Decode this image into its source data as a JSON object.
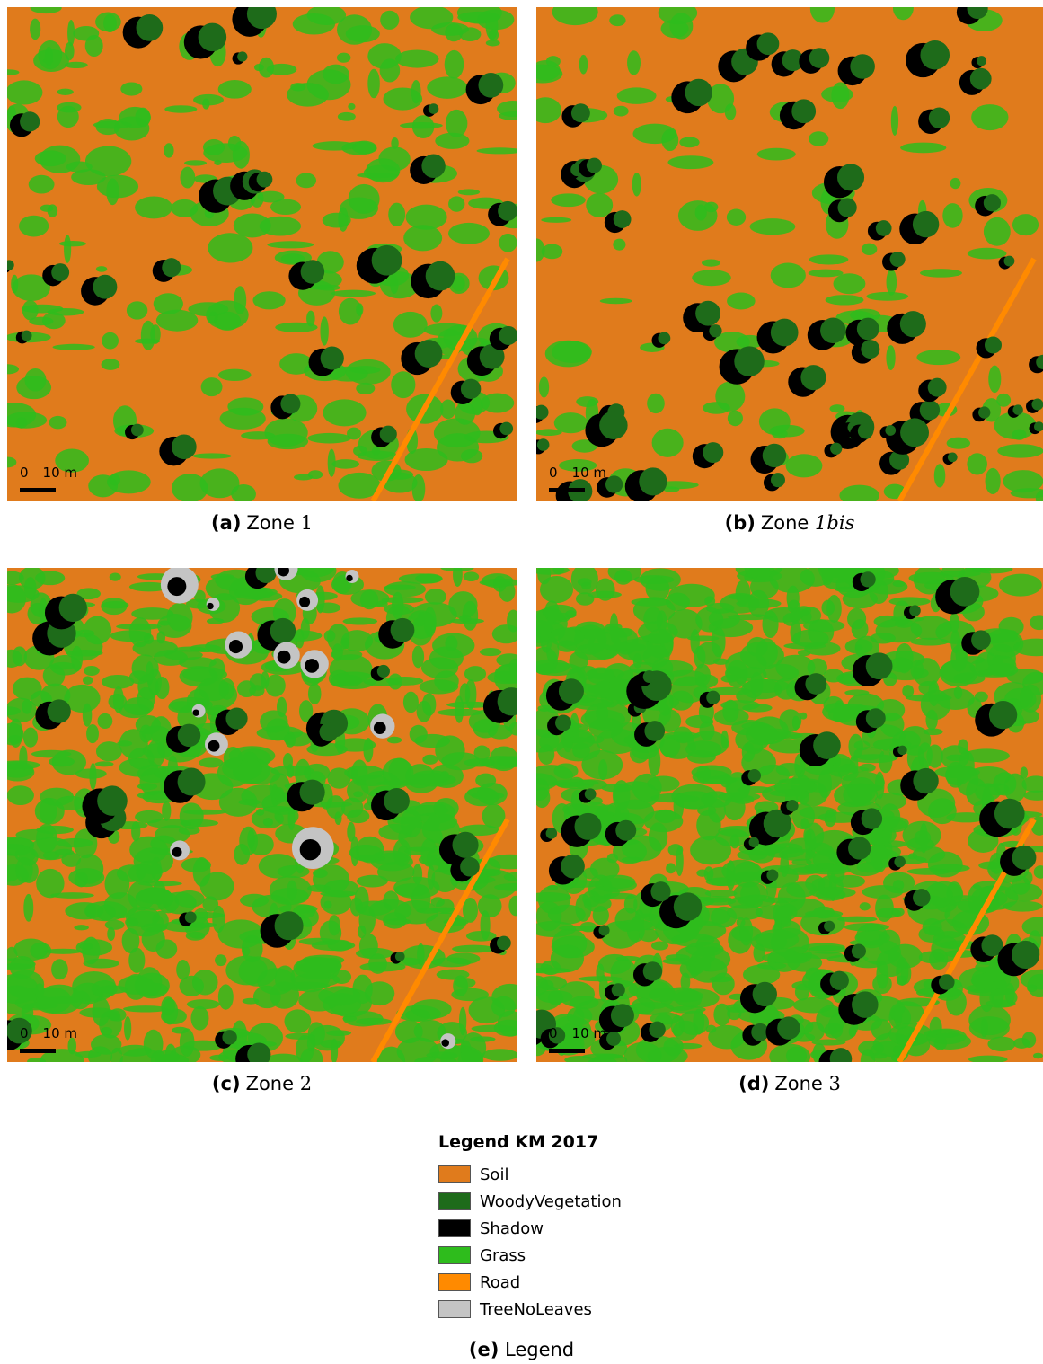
{
  "panels": [
    {
      "label": "(a)",
      "caption": "Zone",
      "zone": "1",
      "scale_start": "0",
      "scale_end": "10 m"
    },
    {
      "label": "(b)",
      "caption": "Zone",
      "zone": "1bis",
      "scale_start": "0",
      "scale_end": "10 m"
    },
    {
      "label": "(c)",
      "caption": "Zone",
      "zone": "2",
      "scale_start": "0",
      "scale_end": "10 m"
    },
    {
      "label": "(d)",
      "caption": "Zone",
      "zone": "3",
      "scale_start": "0",
      "scale_end": "10 m"
    }
  ],
  "legend": {
    "title": "Legend KM 2017",
    "label": "(e)",
    "caption": "Legend",
    "items": [
      {
        "name": "Soil",
        "color": "#e07b1c"
      },
      {
        "name": "WoodyVegetation",
        "color": "#1e6b1a"
      },
      {
        "name": "Shadow",
        "color": "#000000"
      },
      {
        "name": "Grass",
        "color": "#2ebc1c"
      },
      {
        "name": "Road",
        "color": "#ff8a00"
      },
      {
        "name": "TreeNoLeaves",
        "color": "#c4c4c4"
      }
    ]
  }
}
